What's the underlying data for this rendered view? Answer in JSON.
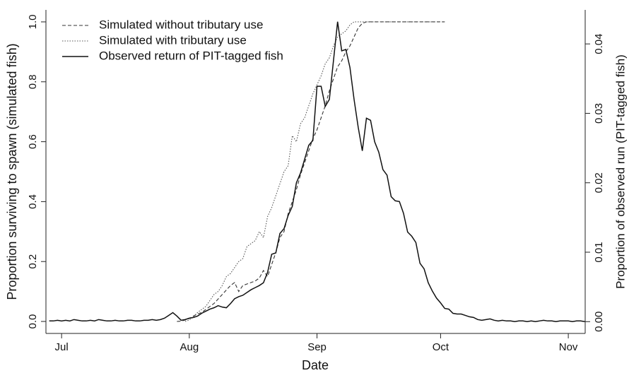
{
  "chart_data": {
    "type": "line",
    "xlabel": "Date",
    "ylabel": "Proportion surviving to spawn (simulated fish)",
    "y2label": "Proportion of observed run (PIT-tagged fish)",
    "xlim": [
      -3.8,
      127.1
    ],
    "xticks": [
      {
        "value": 0,
        "label": "Jul"
      },
      {
        "value": 31,
        "label": "Aug"
      },
      {
        "value": 62,
        "label": "Sep"
      },
      {
        "value": 92,
        "label": "Oct"
      },
      {
        "value": 123,
        "label": "Nov"
      }
    ],
    "ylim": [
      -0.04,
      1.04
    ],
    "yticks": [
      {
        "value": 0,
        "label": "0.0"
      },
      0.2,
      0.4,
      0.6,
      0.8,
      {
        "value": 1,
        "label": "1.0"
      }
    ],
    "y2lim": [
      -0.0017,
      0.0449
    ],
    "y2ticks": [
      {
        "value": 0,
        "label": "0.00"
      },
      0.01,
      0.02,
      0.03,
      0.04
    ],
    "legend": "upper left",
    "x": [
      -3,
      -2,
      -1,
      0,
      1,
      2,
      3,
      4,
      5,
      6,
      7,
      8,
      9,
      10,
      11,
      12,
      13,
      14,
      15,
      16,
      17,
      18,
      19,
      20,
      21,
      22,
      23,
      24,
      25,
      26,
      27,
      28,
      29,
      30,
      31,
      32,
      33,
      34,
      35,
      36,
      37,
      38,
      39,
      40,
      41,
      42,
      43,
      44,
      45,
      46,
      47,
      48,
      49,
      50,
      51,
      52,
      53,
      54,
      55,
      56,
      57,
      58,
      59,
      60,
      61,
      62,
      63,
      64,
      65,
      66,
      67,
      68,
      69,
      70,
      71,
      72,
      73,
      74,
      75,
      76,
      77,
      78,
      79,
      80,
      81,
      82,
      83,
      84,
      85,
      86,
      87,
      88,
      89,
      90,
      91,
      92,
      93,
      94,
      95,
      96,
      97,
      98,
      99,
      100,
      101,
      102,
      103,
      104,
      105,
      106,
      107,
      108,
      109,
      110,
      111,
      112,
      113,
      114,
      115,
      116,
      117,
      118,
      119,
      120,
      121,
      122,
      123,
      124,
      125,
      126,
      127
    ],
    "series": [
      {
        "name": "Simulated without tributary use",
        "color": "#333333",
        "linestyle": "dashed",
        "values": [
          null,
          null,
          null,
          null,
          null,
          null,
          null,
          null,
          null,
          null,
          null,
          null,
          null,
          null,
          null,
          null,
          null,
          null,
          null,
          null,
          null,
          null,
          null,
          null,
          null,
          null,
          null,
          null,
          null,
          null,
          null,
          0.0,
          0.001,
          0.005,
          0.01,
          0.018,
          0.025,
          0.03,
          0.04,
          0.05,
          0.06,
          0.075,
          0.09,
          0.105,
          0.12,
          0.13,
          0.1,
          0.12,
          0.125,
          0.13,
          0.135,
          0.145,
          0.17,
          0.15,
          0.19,
          0.23,
          0.28,
          0.3,
          0.36,
          0.4,
          0.44,
          0.49,
          0.53,
          0.57,
          0.61,
          0.64,
          0.68,
          0.72,
          0.77,
          0.81,
          0.85,
          0.87,
          0.9,
          0.92,
          0.95,
          0.98,
          0.995,
          1,
          1,
          1,
          1,
          1,
          1,
          1,
          1,
          1,
          1,
          1,
          1,
          1,
          1,
          1,
          1,
          1,
          1,
          1,
          1,
          null,
          null,
          null,
          null,
          null,
          null,
          null,
          null,
          null,
          null,
          null,
          null,
          null,
          null,
          null,
          null,
          null,
          null,
          null,
          null,
          null,
          null,
          null,
          null,
          null,
          null,
          null,
          null,
          null,
          null,
          null,
          null,
          null,
          null
        ]
      },
      {
        "name": "Simulated with tributary use",
        "color": "#555555",
        "linestyle": "dotted",
        "values": [
          null,
          null,
          null,
          null,
          null,
          null,
          null,
          null,
          null,
          null,
          null,
          null,
          null,
          null,
          null,
          null,
          null,
          null,
          null,
          null,
          null,
          null,
          null,
          null,
          null,
          null,
          null,
          null,
          null,
          null,
          null,
          null,
          null,
          0.0,
          0.005,
          0.015,
          0.03,
          0.04,
          0.05,
          0.07,
          0.09,
          0.1,
          0.12,
          0.15,
          0.16,
          0.18,
          0.2,
          0.21,
          0.25,
          0.26,
          0.27,
          0.3,
          0.28,
          0.35,
          0.38,
          0.42,
          0.46,
          0.5,
          0.52,
          0.62,
          0.6,
          0.66,
          0.68,
          0.72,
          0.76,
          0.79,
          0.82,
          0.86,
          0.88,
          0.92,
          0.95,
          0.96,
          0.97,
          0.99,
          1,
          1,
          1,
          1,
          1,
          1,
          1,
          1,
          1,
          1,
          1,
          1,
          1,
          1,
          1,
          1,
          1,
          1,
          1,
          1,
          1,
          1,
          1,
          null,
          null,
          null,
          null,
          null,
          null,
          null,
          null,
          null,
          null,
          null,
          null,
          null,
          null,
          null,
          null,
          null,
          null,
          null,
          null,
          null,
          null,
          null,
          null,
          null,
          null,
          null,
          null,
          null,
          null,
          null,
          null,
          null,
          null
        ]
      },
      {
        "name": "Observed return of PIT-tagged fish",
        "color": "#111111",
        "linestyle": "solid",
        "axis": "y2",
        "values": [
          0.0001,
          0.0001,
          0.0002,
          0.0001,
          0.0002,
          0.0001,
          0.0003,
          0.0002,
          0.0001,
          0.0001,
          0.0002,
          0.0001,
          0.0003,
          0.0002,
          0.0001,
          0.0001,
          0.0002,
          0.0001,
          0.0001,
          0.0002,
          0.0002,
          0.0001,
          0.0001,
          0.0002,
          0.0002,
          0.0003,
          0.0002,
          0.0003,
          0.0005,
          0.0009,
          0.0013,
          0.0008,
          0.0002,
          0.0003,
          0.0005,
          0.0006,
          0.0008,
          0.0012,
          0.0015,
          0.0018,
          0.002,
          0.0023,
          0.0021,
          0.002,
          0.0026,
          0.0033,
          0.0036,
          0.0038,
          0.0042,
          0.0046,
          0.0049,
          0.0052,
          0.0056,
          0.0071,
          0.0097,
          0.0099,
          0.0127,
          0.0134,
          0.0153,
          0.0166,
          0.02,
          0.0214,
          0.0234,
          0.0254,
          0.0261,
          0.0339,
          0.0339,
          0.031,
          0.032,
          0.0376,
          0.0432,
          0.039,
          0.0392,
          0.0366,
          0.032,
          0.028,
          0.0246,
          0.0293,
          0.029,
          0.0259,
          0.0244,
          0.0219,
          0.0211,
          0.018,
          0.0174,
          0.0173,
          0.0156,
          0.0129,
          0.0123,
          0.0114,
          0.0084,
          0.0076,
          0.0056,
          0.0044,
          0.0034,
          0.0027,
          0.0019,
          0.0018,
          0.0012,
          0.0011,
          0.0011,
          0.0009,
          0.0007,
          0.0006,
          0.0003,
          0.0002,
          0.0003,
          0.0004,
          0.0002,
          0.0001,
          0.0002,
          0.0001,
          0.0001,
          0.0,
          0.0001,
          0.0001,
          0.0,
          0.0001,
          0.0,
          0.0001,
          0.0002,
          0.0001,
          0.0001,
          0.0,
          0.0001,
          0.0001,
          0.0001,
          0.0,
          0.0001,
          0.0001,
          0.0
        ]
      }
    ]
  }
}
